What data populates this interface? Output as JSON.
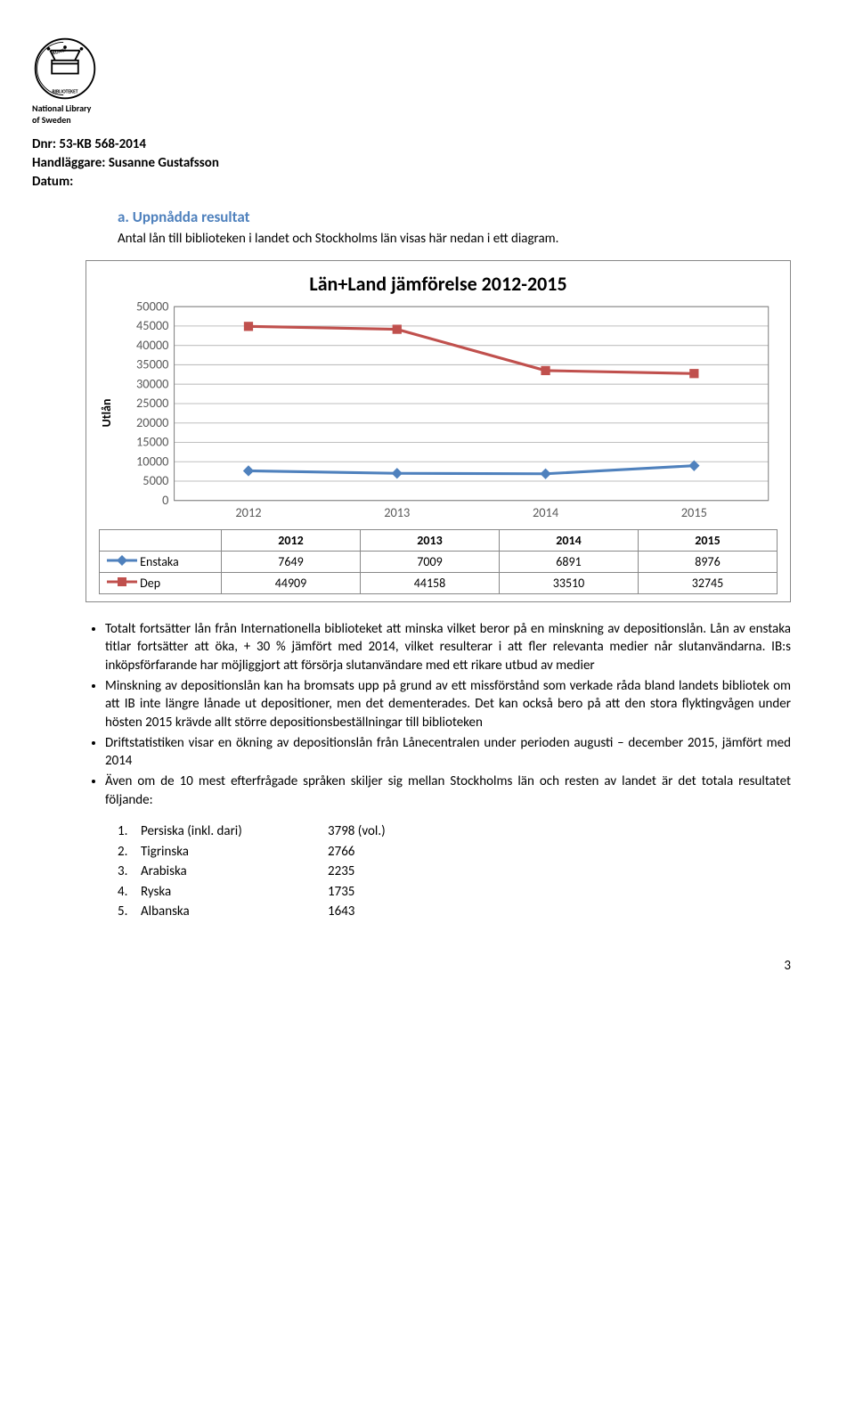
{
  "logo": {
    "label_line1": "National Library",
    "label_line2": "of Sweden"
  },
  "header": {
    "dnr_label": "Dnr:",
    "dnr": "53-KB 568-2014",
    "handler_label": "Handläggare:",
    "handler": "Susanne Gustafsson",
    "datum_label": "Datum:"
  },
  "section": {
    "label": "a.  Uppnådda resultat",
    "intro": "Antal lån till biblioteken i landet och Stockholms län visas här nedan i ett diagram."
  },
  "chart": {
    "title": "Län+Land jämförelse 2012-2015",
    "ylabel": "Utlån",
    "categories": [
      "2012",
      "2013",
      "2014",
      "2015"
    ],
    "series": [
      {
        "name": "Enstaka",
        "values": [
          7649,
          7009,
          6891,
          8976
        ],
        "color": "#4f81bd",
        "marker": "diamond"
      },
      {
        "name": "Dep",
        "values": [
          44909,
          44158,
          33510,
          32745
        ],
        "color": "#c0504d",
        "marker": "square"
      }
    ],
    "ylim": [
      0,
      50000
    ],
    "ytick_step": 5000,
    "plot_bg": "#ffffff",
    "grid_color": "#bfbfbf",
    "axis_color": "#808080",
    "tick_fontsize": 14,
    "title_fontsize": 22
  },
  "bullets": [
    "Totalt fortsätter lån från Internationella biblioteket att minska vilket beror på en minskning av depositionslån. Lån av enstaka titlar fortsätter att öka, + 30 % jämfört med 2014, vilket resulterar i att fler relevanta medier når slutanvändarna. IB:s inköpsförfarande har möjliggjort att försörja slutanvändare med ett rikare utbud av medier",
    "Minskning av depositionslån kan ha bromsats upp på grund av ett missförstånd som verkade råda bland landets bibliotek om att IB inte längre lånade ut depositioner, men det dementerades. Det kan också bero på att den stora flyktingvågen under hösten 2015 krävde allt större depositionsbeställningar till biblioteken",
    "Driftstatistiken visar en ökning av depositionslån från Lånecentralen under perioden augusti – december 2015, jämfört med 2014",
    "Även om de 10 mest efterfrågade språken skiljer sig mellan Stockholms län och resten av landet är det totala resultatet följande:"
  ],
  "numbered": [
    {
      "idx": "1.",
      "name": "Persiska (inkl. dari)",
      "value": "3798 (vol.)"
    },
    {
      "idx": "2.",
      "name": "Tigrinska",
      "value": "2766"
    },
    {
      "idx": "3.",
      "name": "Arabiska",
      "value": "2235"
    },
    {
      "idx": "4.",
      "name": "Ryska",
      "value": "1735"
    },
    {
      "idx": "5.",
      "name": "Albanska",
      "value": "1643"
    }
  ],
  "page_number": "3"
}
